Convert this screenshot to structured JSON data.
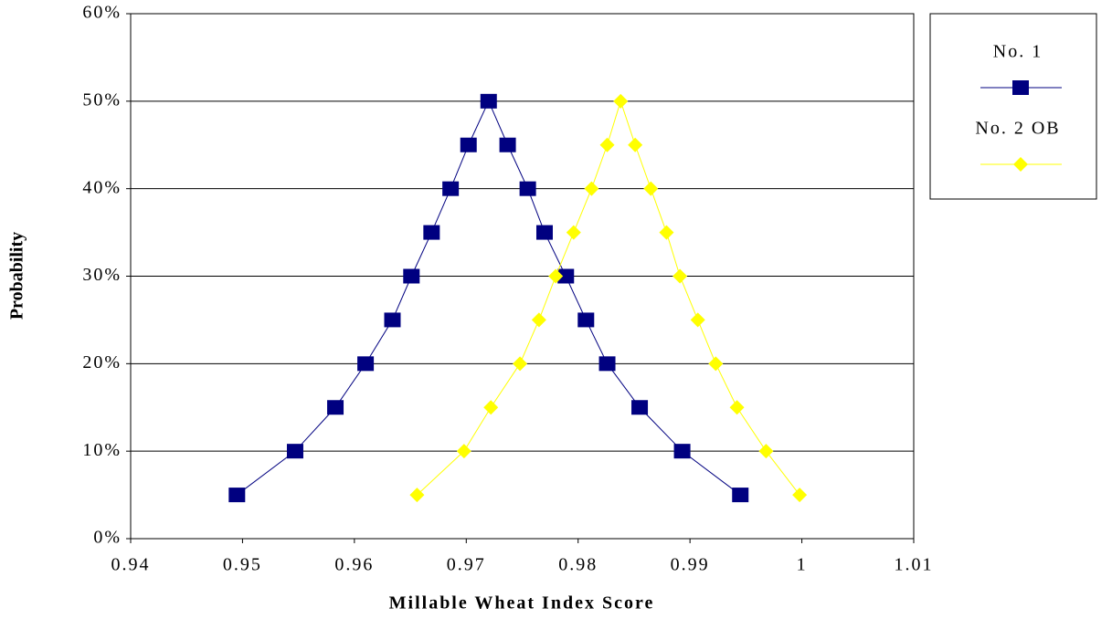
{
  "chart_data": {
    "type": "scatter",
    "x_label": "Millable Wheat Index Score",
    "y_label": "Probability",
    "xlim": [
      0.94,
      1.01
    ],
    "xticks": [
      0.94,
      0.95,
      0.96,
      0.97,
      0.98,
      0.99,
      1,
      1.01
    ],
    "ylim": [
      0,
      60
    ],
    "yticks": [
      {
        "value": 0,
        "label": "0%"
      },
      {
        "value": 10,
        "label": "10%"
      },
      {
        "value": 20,
        "label": "20%"
      },
      {
        "value": 30,
        "label": "30%"
      },
      {
        "value": 40,
        "label": "40%"
      },
      {
        "value": 50,
        "label": "50%"
      },
      {
        "value": 60,
        "label": "60%"
      }
    ],
    "grid": true,
    "legend": "right",
    "series": [
      {
        "name": "No. 1",
        "color": "#000080",
        "marker": "square",
        "x": [
          0.9495,
          0.9547,
          0.9583,
          0.961,
          0.9634,
          0.9651,
          0.9669,
          0.9686,
          0.9702,
          0.972,
          0.9737,
          0.9755,
          0.977,
          0.9789,
          0.9807,
          0.9826,
          0.9855,
          0.9893,
          0.9945
        ],
        "values": [
          5,
          10,
          15,
          20,
          25,
          30,
          35,
          40,
          45,
          50,
          45,
          40,
          35,
          30,
          25,
          20,
          15,
          10,
          5
        ]
      },
      {
        "name": "No. 2 OB",
        "color": "#ffff00",
        "marker": "diamond",
        "x": [
          0.9656,
          0.9698,
          0.9722,
          0.9748,
          0.9765,
          0.978,
          0.9796,
          0.9812,
          0.9826,
          0.9838,
          0.9851,
          0.9865,
          0.9879,
          0.9891,
          0.9907,
          0.9923,
          0.9942,
          0.9968,
          0.9998
        ],
        "values": [
          5,
          10,
          15,
          20,
          25,
          30,
          35,
          40,
          45,
          50,
          45,
          40,
          35,
          30,
          25,
          20,
          15,
          10,
          5
        ]
      }
    ]
  }
}
